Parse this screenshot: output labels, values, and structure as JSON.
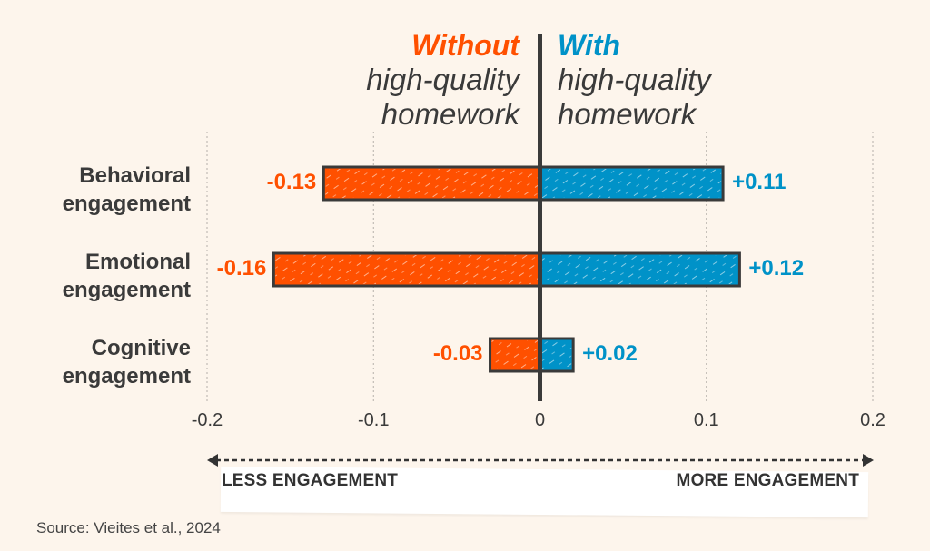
{
  "chart_data": {
    "type": "bar",
    "orientation": "horizontal-diverging",
    "header": {
      "left": {
        "lead": "Without",
        "line2": "high-quality",
        "line3": "homework"
      },
      "right": {
        "lead": "With",
        "line2": "high-quality",
        "line3": "homework"
      }
    },
    "categories": [
      {
        "line1": "Behavioral",
        "line2": "engagement"
      },
      {
        "line1": "Emotional",
        "line2": "engagement"
      },
      {
        "line1": "Cognitive",
        "line2": "engagement"
      }
    ],
    "series": [
      {
        "name": "Without high-quality homework",
        "color": "#ff5000",
        "values": [
          -0.13,
          -0.16,
          -0.03
        ],
        "labels": [
          "-0.13",
          "-0.16",
          "-0.03"
        ]
      },
      {
        "name": "With high-quality homework",
        "color": "#0092c8",
        "values": [
          0.11,
          0.12,
          0.02
        ],
        "labels": [
          "+0.11",
          "+0.12",
          "+0.02"
        ]
      }
    ],
    "xlim": [
      -0.2,
      0.2
    ],
    "xticks": [
      -0.2,
      -0.1,
      0,
      0.1,
      0.2
    ],
    "xtick_labels": [
      "-0.2",
      "-0.1",
      "0",
      "0.1",
      "0.2"
    ],
    "grid": "vertical dotted",
    "axis_direction": {
      "left": "LESS ENGAGEMENT",
      "right": "MORE ENGAGEMENT"
    },
    "source": "Source: Vieites et al., 2024"
  },
  "colors": {
    "without": "#ff5000",
    "with": "#0092c8",
    "ink": "#3a3a3a",
    "background": "#fdf5ec"
  }
}
